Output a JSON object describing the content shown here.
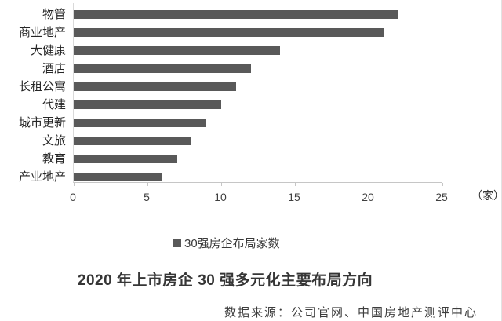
{
  "chart_data": {
    "type": "bar",
    "orientation": "horizontal",
    "title": "2020 年上市房企 30 强多元化主要布局方向",
    "legend": "30强房企布局家数",
    "unit_label": "（家）",
    "categories": [
      "物管",
      "商业地产",
      "大健康",
      "酒店",
      "长租公寓",
      "代建",
      "城市更新",
      "文旅",
      "教育",
      "产业地产"
    ],
    "series": [
      {
        "name": "30强房企布局家数",
        "values": [
          22,
          21,
          14,
          12,
          11,
          10,
          9,
          8,
          7,
          6
        ]
      }
    ],
    "xlim": [
      0,
      25
    ],
    "x_ticks": [
      0,
      5,
      10,
      15,
      20,
      25
    ],
    "grid": "off",
    "legend_position": "bottom",
    "bar_color": "#595959",
    "axis_color": "#c6c6c6"
  },
  "footer": {
    "source": "数据来源：公司官网、中国房地产测评中心"
  }
}
